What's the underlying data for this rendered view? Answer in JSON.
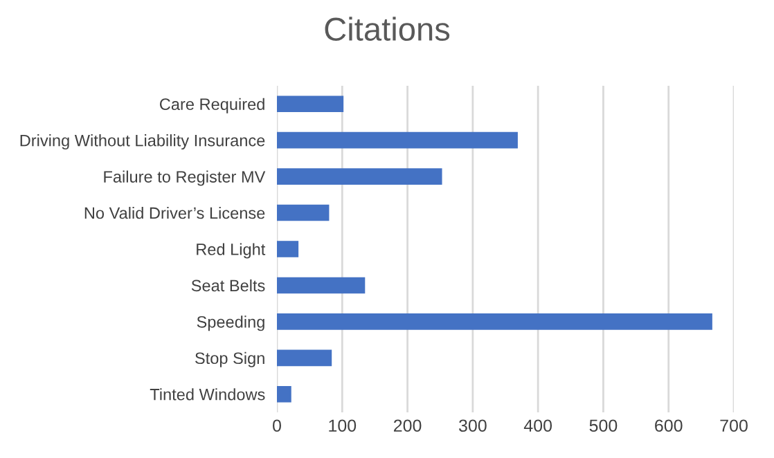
{
  "chart_data": {
    "type": "bar",
    "orientation": "horizontal",
    "title": "Citations",
    "categories": [
      "Care Required",
      "Driving Without Liability Insurance",
      "Failure to Register MV",
      "No Valid Driver’s License",
      "Red Light",
      "Seat Belts",
      "Speeding",
      "Stop Sign",
      "Tinted Windows"
    ],
    "values": [
      102,
      369,
      253,
      80,
      33,
      135,
      667,
      84,
      22
    ],
    "color": "#4472c4",
    "xlim": [
      0,
      700
    ],
    "xticks": [
      0,
      100,
      200,
      300,
      400,
      500,
      600,
      700
    ],
    "grid": "x",
    "legend": false
  }
}
